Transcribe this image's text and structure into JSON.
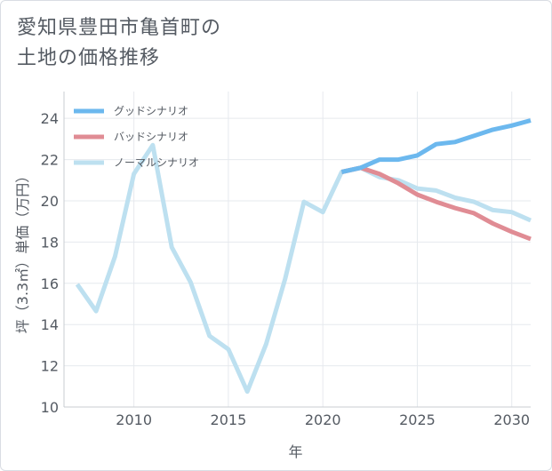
{
  "title": {
    "line1": "愛知県豊田市亀首町の",
    "line2": "土地の価格推移"
  },
  "chart_data": {
    "type": "line",
    "title": "愛知県豊田市亀首町の土地の価格推移",
    "xlabel": "年",
    "ylabel": "坪（3.3㎡）単価（万円）",
    "xlim": [
      2006.3,
      2031
    ],
    "ylim": [
      10,
      25.3
    ],
    "xticks": [
      2010,
      2015,
      2020,
      2025,
      2030
    ],
    "yticks": [
      10,
      12,
      14,
      16,
      18,
      20,
      22,
      24
    ],
    "grid": true,
    "legend_position": "top-left",
    "series": [
      {
        "name": "グッドシナリオ",
        "color": "#6cb8ee",
        "x": [
          2021,
          2022,
          2023,
          2024,
          2025,
          2026,
          2027,
          2028,
          2029,
          2030,
          2031
        ],
        "y": [
          21.4,
          21.6,
          22.0,
          22.0,
          22.2,
          22.75,
          22.85,
          23.15,
          23.45,
          23.65,
          23.9
        ]
      },
      {
        "name": "バッドシナリオ",
        "color": "#e08c94",
        "x": [
          2021,
          2022,
          2023,
          2024,
          2025,
          2026,
          2027,
          2028,
          2029,
          2030,
          2031
        ],
        "y": [
          21.4,
          21.6,
          21.3,
          20.85,
          20.3,
          19.95,
          19.65,
          19.4,
          18.9,
          18.5,
          18.15
        ]
      },
      {
        "name": "ノーマルシナリオ",
        "color": "#bde0f0",
        "x": [
          2007,
          2008,
          2009,
          2010,
          2011,
          2012,
          2013,
          2014,
          2015,
          2016,
          2017,
          2018,
          2019,
          2020,
          2021,
          2022,
          2023,
          2024,
          2025,
          2026,
          2027,
          2028,
          2029,
          2030,
          2031
        ],
        "y": [
          15.95,
          14.65,
          17.3,
          21.3,
          22.7,
          17.75,
          16.05,
          13.45,
          12.8,
          10.75,
          13.05,
          16.2,
          19.95,
          19.45,
          21.4,
          21.6,
          21.15,
          21.0,
          20.6,
          20.5,
          20.15,
          19.95,
          19.55,
          19.45,
          19.05
        ]
      }
    ]
  }
}
